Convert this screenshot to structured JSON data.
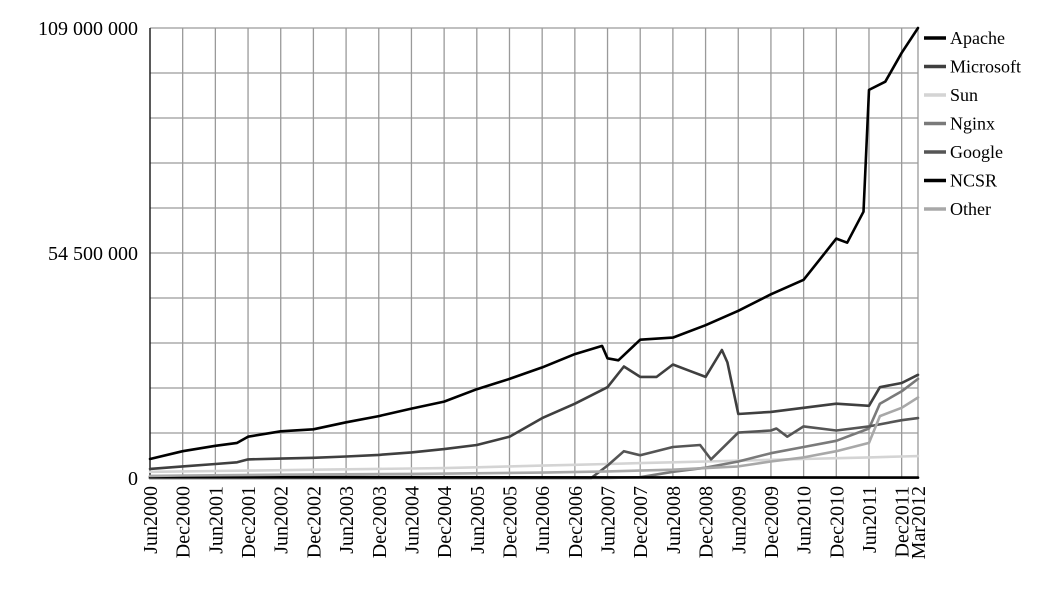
{
  "chart_data": {
    "type": "line",
    "title": "",
    "xlabel": "",
    "ylabel": "",
    "ylim": [
      0,
      109000000
    ],
    "y_ticks": [
      {
        "value": 0,
        "label": "0"
      },
      {
        "value": 54500000,
        "label": "54  500  000"
      },
      {
        "value": 109000000,
        "label": "109  000  000"
      }
    ],
    "x_ticks": [
      "Jun2000",
      "Dec2000",
      "Jun2001",
      "Dec2001",
      "Jun2002",
      "Dec2002",
      "Jun2003",
      "Dec2003",
      "Jun2004",
      "Dec2004",
      "Jun2005",
      "Dec2005",
      "Jun2006",
      "Dec2006",
      "Jun2007",
      "Dec2007",
      "Jun2008",
      "Dec2008",
      "Jun2009",
      "Dec2009",
      "Jun2010",
      "Dec2010",
      "Jun2011",
      "Dec2011",
      "Mar2012"
    ],
    "x_domain": [
      "Jun2000",
      "Mar2012"
    ],
    "grid": true,
    "legend_position": "right",
    "series": [
      {
        "name": "Apache",
        "color": "#000000",
        "points": [
          [
            "Jun2000",
            4600000
          ],
          [
            "Dec2000",
            6500000
          ],
          [
            "Jun2001",
            7800000
          ],
          [
            "Oct2001",
            8500000
          ],
          [
            "Dec2001",
            10000000
          ],
          [
            "Jun2002",
            11300000
          ],
          [
            "Dec2002",
            11800000
          ],
          [
            "Jun2003",
            13500000
          ],
          [
            "Dec2003",
            15000000
          ],
          [
            "Jun2004",
            16800000
          ],
          [
            "Dec2004",
            18500000
          ],
          [
            "Jun2005",
            21500000
          ],
          [
            "Dec2005",
            24000000
          ],
          [
            "Jun2006",
            26800000
          ],
          [
            "Dec2006",
            30000000
          ],
          [
            "May2007",
            32000000
          ],
          [
            "Jun2007",
            29000000
          ],
          [
            "Aug2007",
            28500000
          ],
          [
            "Dec2007",
            33500000
          ],
          [
            "Jun2008",
            34000000
          ],
          [
            "Dec2008",
            37000000
          ],
          [
            "Jun2009",
            40500000
          ],
          [
            "Dec2009",
            44500000
          ],
          [
            "Jun2010",
            48000000
          ],
          [
            "Sep2010",
            53000000
          ],
          [
            "Dec2010",
            58000000
          ],
          [
            "Feb2011",
            57000000
          ],
          [
            "May2011",
            64500000
          ],
          [
            "Jun2011",
            94000000
          ],
          [
            "Sep2011",
            96000000
          ],
          [
            "Dec2011",
            103000000
          ],
          [
            "Mar2012",
            109000000
          ]
        ]
      },
      {
        "name": "Microsoft",
        "color": "#3f3f3f",
        "points": [
          [
            "Jun2000",
            2200000
          ],
          [
            "Dec2000",
            2800000
          ],
          [
            "Jun2001",
            3400000
          ],
          [
            "Oct2001",
            3800000
          ],
          [
            "Dec2001",
            4500000
          ],
          [
            "Jun2002",
            4700000
          ],
          [
            "Dec2002",
            4900000
          ],
          [
            "Jun2003",
            5200000
          ],
          [
            "Dec2003",
            5600000
          ],
          [
            "Jun2004",
            6200000
          ],
          [
            "Dec2004",
            7000000
          ],
          [
            "Jun2005",
            8000000
          ],
          [
            "Dec2005",
            10000000
          ],
          [
            "Jun2006",
            14500000
          ],
          [
            "Dec2006",
            18000000
          ],
          [
            "Jun2007",
            22000000
          ],
          [
            "Sep2007",
            27000000
          ],
          [
            "Dec2007",
            24500000
          ],
          [
            "Mar2008",
            24500000
          ],
          [
            "Jun2008",
            27500000
          ],
          [
            "Sep2008",
            26000000
          ],
          [
            "Dec2008",
            24500000
          ],
          [
            "Mar2009",
            31000000
          ],
          [
            "Apr2009",
            28000000
          ],
          [
            "Jun2009",
            15500000
          ],
          [
            "Dec2009",
            16000000
          ],
          [
            "Jun2010",
            17000000
          ],
          [
            "Dec2010",
            18000000
          ],
          [
            "Jun2011",
            17500000
          ],
          [
            "Aug2011",
            22000000
          ],
          [
            "Dec2011",
            23000000
          ],
          [
            "Mar2012",
            25000000
          ]
        ]
      },
      {
        "name": "Sun",
        "color": "#d4d4d4",
        "points": [
          [
            "Jun2000",
            1500000
          ],
          [
            "Dec2000",
            1600000
          ],
          [
            "Jun2001",
            1700000
          ],
          [
            "Dec2001",
            1800000
          ],
          [
            "Jun2002",
            1900000
          ],
          [
            "Dec2002",
            2000000
          ],
          [
            "Jun2003",
            2100000
          ],
          [
            "Dec2003",
            2200000
          ],
          [
            "Jun2004",
            2300000
          ],
          [
            "Dec2004",
            2400000
          ],
          [
            "Jun2005",
            2600000
          ],
          [
            "Dec2005",
            2800000
          ],
          [
            "Jun2006",
            3000000
          ],
          [
            "Dec2006",
            3200000
          ],
          [
            "Jun2007",
            3400000
          ],
          [
            "Dec2007",
            3600000
          ],
          [
            "Jun2008",
            3800000
          ],
          [
            "Dec2008",
            4000000
          ],
          [
            "Jun2009",
            4200000
          ],
          [
            "Dec2009",
            4400000
          ],
          [
            "Jun2010",
            4600000
          ],
          [
            "Dec2010",
            4800000
          ],
          [
            "Jun2011",
            5000000
          ],
          [
            "Dec2011",
            5200000
          ],
          [
            "Mar2012",
            5300000
          ]
        ]
      },
      {
        "name": "Nginx",
        "color": "#7a7a7a",
        "points": [
          [
            "Jun2000",
            0
          ],
          [
            "Jun2007",
            0
          ],
          [
            "Dec2007",
            200000
          ],
          [
            "Jun2008",
            1500000
          ],
          [
            "Dec2008",
            2500000
          ],
          [
            "Jun2009",
            4000000
          ],
          [
            "Dec2009",
            6000000
          ],
          [
            "Jun2010",
            7500000
          ],
          [
            "Dec2010",
            9000000
          ],
          [
            "Jun2011",
            12000000
          ],
          [
            "Aug2011",
            18000000
          ],
          [
            "Dec2011",
            21000000
          ],
          [
            "Mar2012",
            24000000
          ]
        ]
      },
      {
        "name": "Google",
        "color": "#555555",
        "points": [
          [
            "Jun2000",
            0
          ],
          [
            "Mar2007",
            0
          ],
          [
            "Jun2007",
            3000000
          ],
          [
            "Sep2007",
            6500000
          ],
          [
            "Dec2007",
            5500000
          ],
          [
            "Jun2008",
            7500000
          ],
          [
            "Nov2008",
            8000000
          ],
          [
            "Jan2009",
            4500000
          ],
          [
            "Jun2009",
            11000000
          ],
          [
            "Dec2009",
            11500000
          ],
          [
            "Jan2010",
            12000000
          ],
          [
            "Mar2010",
            10000000
          ],
          [
            "Jun2010",
            12500000
          ],
          [
            "Dec2010",
            11500000
          ],
          [
            "Jun2011",
            12500000
          ],
          [
            "Dec2011",
            14000000
          ],
          [
            "Mar2012",
            14500000
          ]
        ]
      },
      {
        "name": "NCSR",
        "color": "#000000",
        "points": [
          [
            "Jun2000",
            300000
          ],
          [
            "Jun2004",
            200000
          ],
          [
            "Jun2008",
            150000
          ],
          [
            "Mar2012",
            100000
          ]
        ]
      },
      {
        "name": "Other",
        "color": "#a8a8a8",
        "points": [
          [
            "Jun2000",
            500000
          ],
          [
            "Dec2000",
            600000
          ],
          [
            "Jun2002",
            800000
          ],
          [
            "Jun2004",
            1000000
          ],
          [
            "Jun2006",
            1300000
          ],
          [
            "Jun2007",
            1600000
          ],
          [
            "Jun2008",
            2000000
          ],
          [
            "Jun2009",
            2800000
          ],
          [
            "Dec2009",
            4000000
          ],
          [
            "Jun2010",
            5000000
          ],
          [
            "Dec2010",
            6500000
          ],
          [
            "Jun2011",
            8500000
          ],
          [
            "Aug2011",
            15000000
          ],
          [
            "Dec2011",
            17000000
          ],
          [
            "Mar2012",
            19500000
          ]
        ]
      }
    ]
  }
}
